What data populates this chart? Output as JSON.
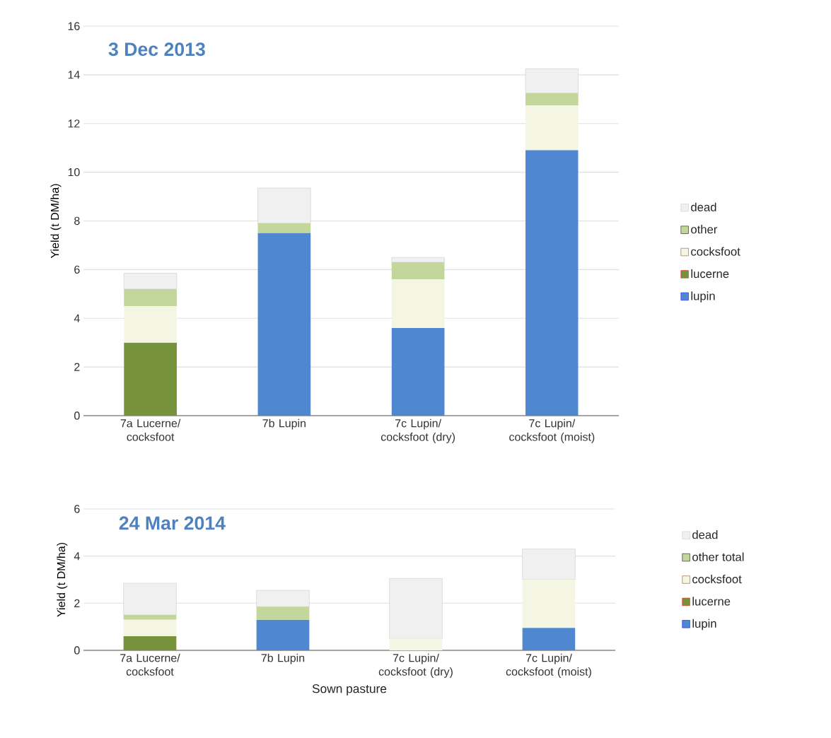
{
  "chart_data": [
    {
      "type": "bar",
      "title": "3 Dec 2013",
      "ylabel": "Yield (t DM/ha)",
      "stacked": true,
      "grid": "y",
      "legend": "right",
      "categories": [
        "7a Lucerne/ cocksfoot",
        "7b Lupin",
        "7c Lupin/ cocksfoot (dry)",
        "7c Lupin/ cocksfoot (moist)"
      ],
      "ylim": [
        0,
        16
      ],
      "yticks": [
        0,
        2,
        4,
        6,
        8,
        10,
        12,
        14,
        16
      ],
      "series": [
        {
          "name": "lupin",
          "color": "#4f88d0",
          "values": [
            0,
            7.5,
            3.6,
            10.9
          ]
        },
        {
          "name": "lucerne",
          "color": "#76933c",
          "values": [
            3.0,
            0,
            0,
            0
          ]
        },
        {
          "name": "cocksfoot",
          "color": "#f5f5e4",
          "values": [
            1.5,
            0,
            2.0,
            1.85
          ]
        },
        {
          "name": "other",
          "color": "#c3d69b",
          "values": [
            0.7,
            0.4,
            0.7,
            0.5
          ]
        },
        {
          "name": "dead",
          "color": "#f0f0f0",
          "values": [
            0.65,
            1.45,
            0.2,
            1.0
          ]
        }
      ]
    },
    {
      "type": "bar",
      "title": "24 Mar 2014",
      "ylabel": "Yield (t DM/ha)",
      "xlabel": "Sown pasture",
      "stacked": true,
      "grid": "y",
      "legend": "right",
      "categories": [
        "7a Lucerne/ cocksfoot",
        "7b Lupin",
        "7c Lupin/ cocksfoot (dry)",
        "7c Lupin/ cocksfoot (moist)"
      ],
      "ylim": [
        0,
        6
      ],
      "yticks": [
        0,
        2,
        4,
        6
      ],
      "series": [
        {
          "name": "lupin",
          "color": "#4f88d0",
          "values": [
            0,
            1.3,
            0,
            0.95
          ]
        },
        {
          "name": "lucerne",
          "color": "#76933c",
          "values": [
            0.6,
            0,
            0,
            0
          ]
        },
        {
          "name": "cocksfoot",
          "color": "#f5f5e4",
          "values": [
            0.7,
            0,
            0.5,
            2.05
          ]
        },
        {
          "name": "other total",
          "color": "#c3d69b",
          "values": [
            0.2,
            0.55,
            0,
            0
          ]
        },
        {
          "name": "dead",
          "color": "#f0f0f0",
          "values": [
            1.35,
            0.7,
            2.55,
            1.3
          ]
        }
      ]
    }
  ]
}
